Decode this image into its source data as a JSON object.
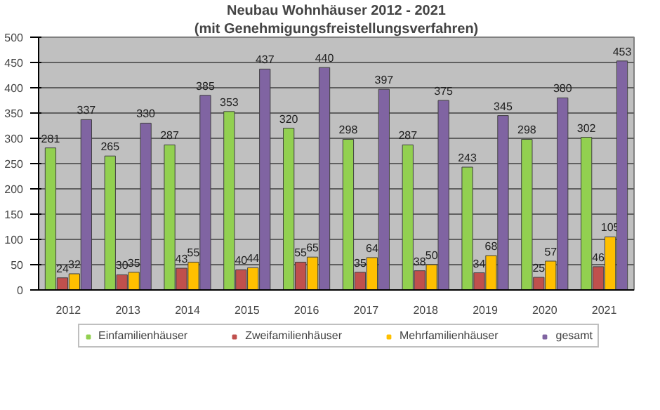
{
  "chart_data": {
    "type": "bar",
    "title": "Neubau Wohnhäuser 2012 - 2021",
    "subtitle": "(mit Genehmigungsfreistellungsverfahren)",
    "categories": [
      "2012",
      "2013",
      "2014",
      "2015",
      "2016",
      "2017",
      "2018",
      "2019",
      "2020",
      "2021"
    ],
    "series": [
      {
        "name": "Einfamilienhäuser",
        "color": "#92d050",
        "values": [
          281,
          265,
          287,
          353,
          320,
          298,
          287,
          243,
          298,
          302
        ]
      },
      {
        "name": "Zweifamilienhäuser",
        "color": "#c0504d",
        "values": [
          24,
          30,
          43,
          40,
          55,
          35,
          38,
          34,
          25,
          46
        ]
      },
      {
        "name": "Mehrfamilienhäuser",
        "color": "#ffc000",
        "values": [
          32,
          35,
          55,
          44,
          65,
          64,
          50,
          68,
          57,
          105
        ]
      },
      {
        "name": "gesamt",
        "color": "#8064a2",
        "values": [
          337,
          330,
          385,
          437,
          440,
          397,
          375,
          345,
          380,
          453
        ]
      }
    ],
    "ylim": [
      0,
      500
    ],
    "yticks": [
      0,
      50,
      100,
      150,
      200,
      250,
      300,
      350,
      400,
      450,
      500
    ],
    "grid": "y",
    "legend": "bottom",
    "data_labels": true
  }
}
